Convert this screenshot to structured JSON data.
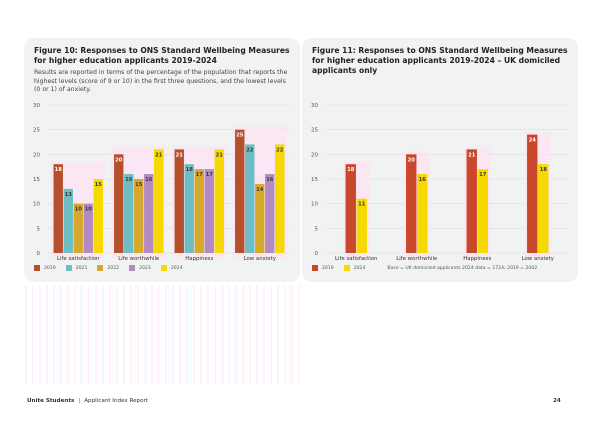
{
  "chart_data": [
    {
      "type": "bar",
      "title": "Figure 10: Responses to ONS Standard Wellbeing Measures for higher education applicants 2019-2024",
      "subtitle": "Results are reported in terms of the percentage of the population that reports the highest levels (score of 9 or 10) in the first three questions, and the lowest levels (0 or 1) of anxiety.",
      "categories": [
        "Life satisfaction",
        "Life worthwhile",
        "Happiness",
        "Low anxiety"
      ],
      "series": [
        {
          "name": "2019",
          "color": "#b4502c",
          "values": [
            18,
            20,
            21,
            25
          ]
        },
        {
          "name": "2021",
          "color": "#6cbec4",
          "values": [
            13,
            16,
            18,
            22
          ]
        },
        {
          "name": "2022",
          "color": "#d6a92c",
          "values": [
            10,
            15,
            17,
            14
          ]
        },
        {
          "name": "2023",
          "color": "#b48ac2",
          "values": [
            10,
            16,
            17,
            16
          ]
        },
        {
          "name": "2024",
          "color": "#f5d900",
          "values": [
            15,
            21,
            21,
            22
          ]
        }
      ],
      "yticks": [
        0,
        5,
        10,
        15,
        20,
        25,
        30
      ],
      "ylim": [
        0,
        30
      ],
      "xlabel": "",
      "ylabel": "",
      "grid": true,
      "legend": "bottom-left"
    },
    {
      "type": "bar",
      "title": "Figure 11: Responses to ONS Standard Wellbeing Measures for higher education applicants 2019-2024 – UK domiciled applicants only",
      "categories": [
        "Life satisfaction",
        "Life worthwhile",
        "Happiness",
        "Low anxiety"
      ],
      "series": [
        {
          "name": "2019",
          "color": "#c9472b",
          "values": [
            18,
            20,
            21,
            24
          ]
        },
        {
          "name": "2024",
          "color": "#f5d900",
          "values": [
            11,
            16,
            17,
            18
          ]
        }
      ],
      "yticks": [
        0,
        5,
        10,
        15,
        20,
        25,
        30
      ],
      "ylim": [
        0,
        30
      ],
      "xlabel": "",
      "ylabel": "",
      "grid": true,
      "legend": "bottom-left",
      "base_note": "Base = UK domiciled applicants 2024 data = 1724; 2019 = 2002"
    }
  ],
  "footer": {
    "brand": "Unite Students",
    "separator": "|",
    "report": "Applicant Index Report",
    "page_number": "24"
  }
}
